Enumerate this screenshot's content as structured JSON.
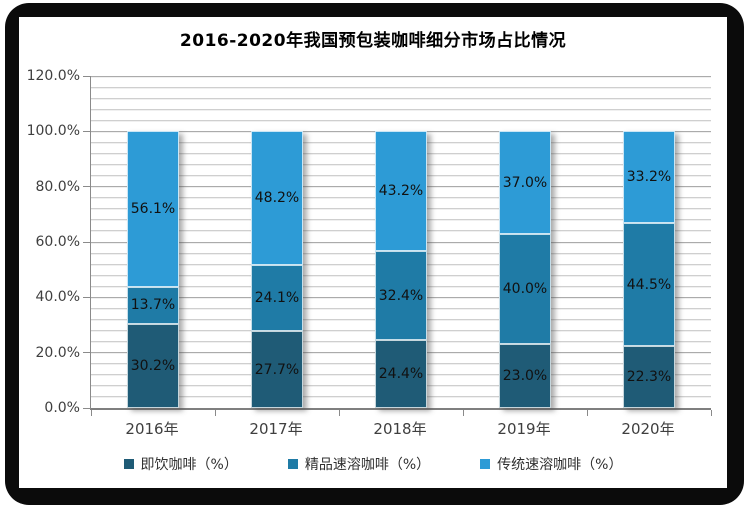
{
  "chart_data": {
    "type": "bar",
    "stacked": true,
    "title": "2016-2020年我国预包装咖啡细分市场占比情况",
    "categories": [
      "2016年",
      "2017年",
      "2018年",
      "2019年",
      "2020年"
    ],
    "series": [
      {
        "name": "即饮咖啡（%）",
        "color": "#1F5B76",
        "values": [
          30.2,
          27.7,
          24.4,
          23.0,
          22.3
        ]
      },
      {
        "name": "精品速溶咖啡（%）",
        "color": "#1F7BA6",
        "values": [
          13.7,
          24.1,
          32.4,
          40.0,
          44.5
        ]
      },
      {
        "name": "传统速溶咖啡（%）",
        "color": "#2D9BD6",
        "values": [
          56.1,
          48.2,
          43.2,
          37.0,
          33.2
        ]
      }
    ],
    "y_axis": {
      "min": 0,
      "max": 120,
      "major_step": 20,
      "minor_step": 4,
      "tick_labels": [
        "0.0%",
        "20.0%",
        "40.0%",
        "60.0%",
        "80.0%",
        "100.0%",
        "120.0%"
      ]
    },
    "data_label_suffix": "%",
    "grid": true,
    "legend_position": "bottom",
    "frame_color": "#0b0b0b",
    "background_color": "#ffffff"
  }
}
